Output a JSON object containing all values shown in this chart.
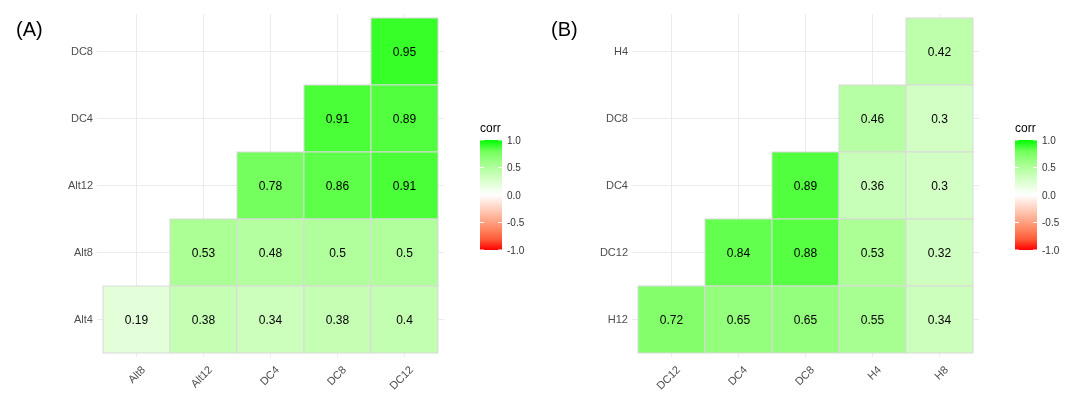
{
  "chart_data": [
    {
      "type": "heatmap",
      "title": "(A)",
      "categories": [
        "Alt8",
        "Alt12",
        "DC4",
        "DC8",
        "DC12"
      ],
      "y_categories": [
        "DC8",
        "DC4",
        "Alt12",
        "Alt8",
        "Alt4"
      ],
      "cells": [
        [
          null,
          null,
          null,
          null,
          0.95
        ],
        [
          null,
          null,
          null,
          0.91,
          0.89
        ],
        [
          null,
          null,
          0.78,
          0.86,
          0.91
        ],
        [
          null,
          0.53,
          0.48,
          0.5,
          0.5
        ],
        [
          0.19,
          0.38,
          0.34,
          0.38,
          0.4
        ]
      ],
      "clim": [
        -1,
        1
      ],
      "cticks": [
        {
          "value": 1,
          "label": "1.0"
        },
        {
          "value": 0.5,
          "label": "0.5"
        },
        {
          "value": 0,
          "label": "0.0"
        },
        {
          "value": -0.5,
          "label": "-0.5"
        },
        {
          "value": -1,
          "label": "-1.0"
        }
      ],
      "clabel": "corr",
      "data_labels": true,
      "grid": true
    },
    {
      "type": "heatmap",
      "title": "(B)",
      "categories": [
        "DC12",
        "DC4",
        "DC8",
        "H4",
        "H8"
      ],
      "y_categories": [
        "H4",
        "DC8",
        "DC4",
        "DC12",
        "H12"
      ],
      "cells": [
        [
          null,
          null,
          null,
          null,
          0.42
        ],
        [
          null,
          null,
          null,
          0.46,
          0.3
        ],
        [
          null,
          null,
          0.89,
          0.36,
          0.3
        ],
        [
          null,
          0.84,
          0.88,
          0.53,
          0.32
        ],
        [
          0.72,
          0.65,
          0.65,
          0.55,
          0.34
        ]
      ],
      "clim": [
        -1,
        1
      ],
      "cticks": [
        {
          "value": 1,
          "label": "1.0"
        },
        {
          "value": 0.5,
          "label": "0.5"
        },
        {
          "value": 0,
          "label": "0.0"
        },
        {
          "value": -0.5,
          "label": "-0.5"
        },
        {
          "value": -1,
          "label": "-1.0"
        }
      ],
      "clabel": "corr",
      "data_labels": true,
      "grid": true
    }
  ]
}
